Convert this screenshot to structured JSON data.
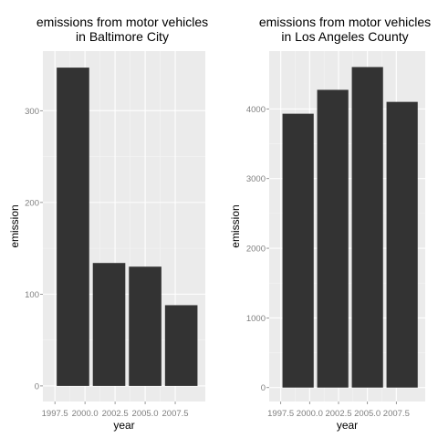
{
  "chart_data": [
    {
      "type": "bar",
      "title_lines": [
        "emissions from motor vehicles",
        "in Baltimore City"
      ],
      "xlabel": "year",
      "ylabel": "emission",
      "x": [
        1999,
        2002,
        2005,
        2008
      ],
      "values": [
        347,
        134,
        130,
        88
      ],
      "xlim": [
        1996.5,
        2010
      ],
      "ylim": [
        -17,
        365
      ],
      "xticks": [
        1997.5,
        2000.0,
        2002.5,
        2005.0,
        2007.5
      ],
      "xtick_labels": [
        "1997.5",
        "2000.0",
        "2002.5",
        "2005.0",
        "2007.5"
      ],
      "yticks": [
        0,
        100,
        200,
        300
      ],
      "ytick_labels": [
        "0",
        "100",
        "200",
        "300"
      ],
      "bar_width_years": 2.7,
      "grid": true,
      "legend": "none",
      "colors": {
        "bar": "#333333",
        "panel": "#ebebeb",
        "grid_major": "#ffffff",
        "grid_minor": "#f5f5f5"
      }
    },
    {
      "type": "bar",
      "title_lines": [
        "emissions from motor vehicles",
        "in Los Angeles County"
      ],
      "xlabel": "year",
      "ylabel": "emission",
      "x": [
        1999,
        2002,
        2005,
        2008
      ],
      "values": [
        3931,
        4274,
        4601,
        4101
      ],
      "xlim": [
        1996.5,
        2010
      ],
      "ylim": [
        -200,
        4830
      ],
      "xticks": [
        1997.5,
        2000.0,
        2002.5,
        2005.0,
        2007.5
      ],
      "xtick_labels": [
        "1997.5",
        "2000.0",
        "2002.5",
        "2005.0",
        "2007.5"
      ],
      "yticks": [
        0,
        1000,
        2000,
        3000,
        4000
      ],
      "ytick_labels": [
        "0",
        "1000",
        "2000",
        "3000",
        "4000"
      ],
      "bar_width_years": 2.7,
      "grid": true,
      "legend": "none",
      "colors": {
        "bar": "#333333",
        "panel": "#ebebeb",
        "grid_major": "#ffffff",
        "grid_minor": "#f5f5f5"
      }
    }
  ]
}
